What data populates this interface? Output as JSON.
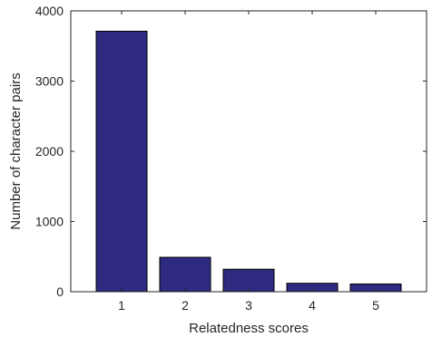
{
  "chart_data": {
    "type": "bar",
    "categories": [
      "1",
      "2",
      "3",
      "4",
      "5"
    ],
    "values": [
      3710,
      490,
      320,
      120,
      110
    ],
    "xlabel": "Relatedness scores",
    "ylabel": "Number of character pairs",
    "ylim": [
      0,
      4000
    ],
    "xlim": [
      0.2,
      5.8
    ],
    "yticks": [
      "0",
      "1000",
      "2000",
      "3000",
      "4000"
    ],
    "grid": false,
    "box": true,
    "colors": {
      "bar_fill": "#2d2a7f",
      "bar_edge": "#000000",
      "axis": "#262626"
    }
  }
}
